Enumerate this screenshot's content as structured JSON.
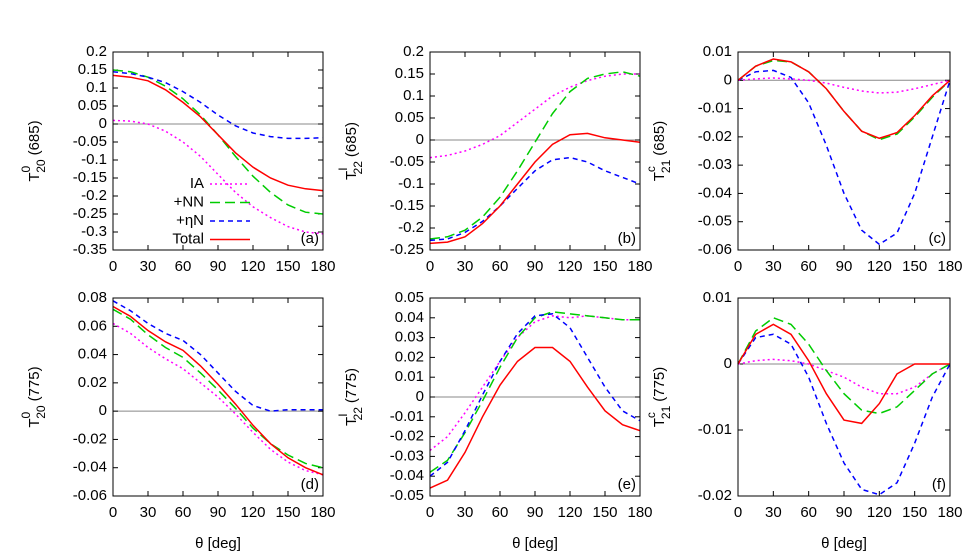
{
  "chart_data": [
    {
      "type": "line",
      "panel_label": "(a)",
      "ylabel": {
        "symbol": "T",
        "sup": "0",
        "sub": "20",
        "suffix": "(685)"
      },
      "x": [
        0,
        15,
        30,
        45,
        60,
        75,
        90,
        105,
        120,
        135,
        150,
        165,
        180
      ],
      "xlim": [
        0,
        180
      ],
      "xticks": [
        0,
        30,
        60,
        90,
        120,
        150,
        180
      ],
      "ylim": [
        -0.35,
        0.2
      ],
      "yticks": [
        -0.35,
        -0.3,
        -0.25,
        -0.2,
        -0.15,
        -0.1,
        -0.05,
        0,
        0.05,
        0.1,
        0.15,
        0.2
      ],
      "legend": "lower left",
      "series": [
        {
          "name": "IA",
          "color": "#ff00ff",
          "dash": "dotted",
          "values": [
            0.01,
            0.008,
            0.0,
            -0.02,
            -0.05,
            -0.09,
            -0.14,
            -0.19,
            -0.23,
            -0.26,
            -0.285,
            -0.3,
            -0.305
          ]
        },
        {
          "name": "+NN",
          "color": "#00cc00",
          "dash": "long-dash",
          "values": [
            0.15,
            0.145,
            0.13,
            0.105,
            0.07,
            0.025,
            -0.03,
            -0.09,
            -0.145,
            -0.19,
            -0.225,
            -0.245,
            -0.25
          ]
        },
        {
          "name": "+ηN",
          "color": "#0000ff",
          "dash": "short-dash",
          "values": [
            0.145,
            0.14,
            0.13,
            0.115,
            0.09,
            0.06,
            0.025,
            -0.005,
            -0.025,
            -0.035,
            -0.04,
            -0.04,
            -0.038
          ]
        },
        {
          "name": "Total",
          "color": "#ff0000",
          "dash": "solid",
          "values": [
            0.135,
            0.13,
            0.12,
            0.095,
            0.06,
            0.02,
            -0.03,
            -0.08,
            -0.12,
            -0.15,
            -0.17,
            -0.18,
            -0.185
          ]
        }
      ]
    },
    {
      "type": "line",
      "panel_label": "(b)",
      "ylabel": {
        "symbol": "T",
        "sup": "I",
        "sub": "22",
        "suffix": "(685)"
      },
      "x": [
        0,
        15,
        30,
        45,
        60,
        75,
        90,
        105,
        120,
        135,
        150,
        165,
        180
      ],
      "xlim": [
        0,
        180
      ],
      "xticks": [
        0,
        30,
        60,
        90,
        120,
        150,
        180
      ],
      "ylim": [
        -0.25,
        0.2
      ],
      "yticks": [
        -0.25,
        -0.2,
        -0.15,
        -0.1,
        -0.05,
        0,
        0.05,
        0.1,
        0.15,
        0.2
      ],
      "series": [
        {
          "color": "#ff00ff",
          "dash": "dotted",
          "values": [
            -0.04,
            -0.035,
            -0.025,
            -0.01,
            0.01,
            0.04,
            0.07,
            0.1,
            0.12,
            0.135,
            0.145,
            0.15,
            0.15
          ]
        },
        {
          "color": "#00cc00",
          "dash": "long-dash",
          "values": [
            -0.225,
            -0.22,
            -0.205,
            -0.175,
            -0.13,
            -0.07,
            -0.005,
            0.06,
            0.11,
            0.14,
            0.15,
            0.155,
            0.145
          ]
        },
        {
          "color": "#0000ff",
          "dash": "short-dash",
          "values": [
            -0.228,
            -0.225,
            -0.21,
            -0.185,
            -0.15,
            -0.11,
            -0.07,
            -0.045,
            -0.04,
            -0.05,
            -0.07,
            -0.085,
            -0.1
          ]
        },
        {
          "color": "#ff0000",
          "dash": "solid",
          "values": [
            -0.235,
            -0.232,
            -0.22,
            -0.19,
            -0.15,
            -0.1,
            -0.05,
            -0.01,
            0.012,
            0.015,
            0.005,
            0,
            -0.005
          ]
        }
      ]
    },
    {
      "type": "line",
      "panel_label": "(c)",
      "ylabel": {
        "symbol": "T",
        "sup": "c",
        "sub": "21",
        "suffix": "(685)"
      },
      "x": [
        0,
        15,
        30,
        45,
        60,
        75,
        90,
        105,
        120,
        135,
        150,
        165,
        180
      ],
      "xlim": [
        0,
        180
      ],
      "xticks": [
        0,
        30,
        60,
        90,
        120,
        150,
        180
      ],
      "ylim": [
        -0.06,
        0.01
      ],
      "yticks": [
        -0.06,
        -0.05,
        -0.04,
        -0.03,
        -0.02,
        -0.01,
        0,
        0.01
      ],
      "series": [
        {
          "color": "#ff00ff",
          "dash": "dotted",
          "values": [
            0,
            0.0005,
            0.0008,
            0.0005,
            0,
            -0.001,
            -0.0025,
            -0.0038,
            -0.0045,
            -0.0042,
            -0.003,
            -0.0015,
            0
          ]
        },
        {
          "color": "#00cc00",
          "dash": "long-dash",
          "values": [
            0,
            0.005,
            0.007,
            0.0065,
            0.003,
            -0.003,
            -0.011,
            -0.018,
            -0.021,
            -0.019,
            -0.013,
            -0.006,
            0
          ]
        },
        {
          "color": "#0000ff",
          "dash": "short-dash",
          "values": [
            0,
            0.003,
            0.0035,
            0.001,
            -0.008,
            -0.023,
            -0.04,
            -0.053,
            -0.058,
            -0.054,
            -0.04,
            -0.02,
            0
          ]
        },
        {
          "color": "#ff0000",
          "dash": "solid",
          "values": [
            0,
            0.005,
            0.0075,
            0.0065,
            0.003,
            -0.003,
            -0.011,
            -0.018,
            -0.0205,
            -0.0185,
            -0.0125,
            -0.0055,
            0
          ]
        }
      ]
    },
    {
      "type": "line",
      "panel_label": "(d)",
      "ylabel": {
        "symbol": "T",
        "sup": "0",
        "sub": "20",
        "suffix": "(775)"
      },
      "xlabel": "θ [deg]",
      "x": [
        0,
        15,
        30,
        45,
        60,
        75,
        90,
        105,
        120,
        135,
        150,
        165,
        180
      ],
      "xlim": [
        0,
        180
      ],
      "xticks": [
        0,
        30,
        60,
        90,
        120,
        150,
        180
      ],
      "ylim": [
        -0.06,
        0.08
      ],
      "yticks": [
        -0.06,
        -0.04,
        -0.02,
        0,
        0.02,
        0.04,
        0.06,
        0.08
      ],
      "series": [
        {
          "color": "#ff00ff",
          "dash": "dotted",
          "values": [
            0.062,
            0.055,
            0.045,
            0.037,
            0.03,
            0.02,
            0.01,
            -0.002,
            -0.015,
            -0.027,
            -0.036,
            -0.042,
            -0.045
          ]
        },
        {
          "color": "#00cc00",
          "dash": "long-dash",
          "values": [
            0.072,
            0.065,
            0.054,
            0.045,
            0.038,
            0.027,
            0.015,
            0.002,
            -0.012,
            -0.023,
            -0.031,
            -0.037,
            -0.04
          ]
        },
        {
          "color": "#0000ff",
          "dash": "short-dash",
          "values": [
            0.078,
            0.071,
            0.062,
            0.055,
            0.05,
            0.04,
            0.027,
            0.014,
            0.004,
            0.0,
            0.001,
            0.001,
            0.001
          ]
        },
        {
          "color": "#ff0000",
          "dash": "solid",
          "values": [
            0.074,
            0.067,
            0.057,
            0.049,
            0.043,
            0.032,
            0.019,
            0.005,
            -0.01,
            -0.023,
            -0.033,
            -0.04,
            -0.045
          ]
        }
      ]
    },
    {
      "type": "line",
      "panel_label": "(e)",
      "ylabel": {
        "symbol": "T",
        "sup": "I",
        "sub": "22",
        "suffix": "(775)"
      },
      "xlabel": "θ [deg]",
      "x": [
        0,
        15,
        30,
        45,
        60,
        75,
        90,
        105,
        120,
        135,
        150,
        165,
        180
      ],
      "xlim": [
        0,
        180
      ],
      "xticks": [
        0,
        30,
        60,
        90,
        120,
        150,
        180
      ],
      "ylim": [
        -0.05,
        0.05
      ],
      "yticks": [
        -0.05,
        -0.04,
        -0.03,
        -0.02,
        -0.01,
        0,
        0.01,
        0.02,
        0.03,
        0.04,
        0.05
      ],
      "series": [
        {
          "color": "#ff00ff",
          "dash": "dotted",
          "values": [
            -0.027,
            -0.02,
            -0.008,
            0.005,
            0.018,
            0.03,
            0.038,
            0.041,
            0.04,
            0.041,
            0.04,
            0.039,
            0.039
          ]
        },
        {
          "color": "#00cc00",
          "dash": "long-dash",
          "values": [
            -0.038,
            -0.032,
            -0.018,
            -0.002,
            0.015,
            0.03,
            0.04,
            0.043,
            0.042,
            0.041,
            0.04,
            0.039,
            0.039
          ]
        },
        {
          "color": "#0000ff",
          "dash": "short-dash",
          "values": [
            -0.04,
            -0.033,
            -0.017,
            0.001,
            0.018,
            0.032,
            0.041,
            0.042,
            0.035,
            0.02,
            0.005,
            -0.007,
            -0.012
          ]
        },
        {
          "color": "#ff0000",
          "dash": "solid",
          "values": [
            -0.046,
            -0.042,
            -0.028,
            -0.01,
            0.006,
            0.018,
            0.025,
            0.025,
            0.018,
            0.005,
            -0.007,
            -0.014,
            -0.017
          ]
        }
      ]
    },
    {
      "type": "line",
      "panel_label": "(f)",
      "ylabel": {
        "symbol": "T",
        "sup": "c",
        "sub": "21",
        "suffix": "(775)"
      },
      "xlabel": "θ [deg]",
      "x": [
        0,
        15,
        30,
        45,
        60,
        75,
        90,
        105,
        120,
        135,
        150,
        165,
        180
      ],
      "xlim": [
        0,
        180
      ],
      "xticks": [
        0,
        30,
        60,
        90,
        120,
        150,
        180
      ],
      "ylim": [
        -0.02,
        0.01
      ],
      "yticks": [
        -0.02,
        -0.01,
        0,
        0.01
      ],
      "series": [
        {
          "color": "#ff00ff",
          "dash": "dotted",
          "values": [
            0,
            0.0005,
            0.0007,
            0.0005,
            0,
            -0.001,
            -0.002,
            -0.0035,
            -0.0045,
            -0.0045,
            -0.0035,
            -0.0015,
            0
          ]
        },
        {
          "color": "#00cc00",
          "dash": "long-dash",
          "values": [
            0,
            0.005,
            0.007,
            0.006,
            0.003,
            -0.001,
            -0.0045,
            -0.007,
            -0.0075,
            -0.0065,
            -0.004,
            -0.0015,
            0
          ]
        },
        {
          "color": "#0000ff",
          "dash": "short-dash",
          "values": [
            0,
            0.004,
            0.0045,
            0.003,
            -0.002,
            -0.009,
            -0.015,
            -0.019,
            -0.0198,
            -0.018,
            -0.012,
            -0.005,
            0
          ]
        },
        {
          "color": "#ff0000",
          "dash": "solid",
          "values": [
            0,
            0.0045,
            0.006,
            0.0045,
            0.0005,
            -0.0045,
            -0.0085,
            -0.009,
            -0.006,
            -0.0015,
            0,
            0,
            0
          ]
        }
      ]
    }
  ]
}
